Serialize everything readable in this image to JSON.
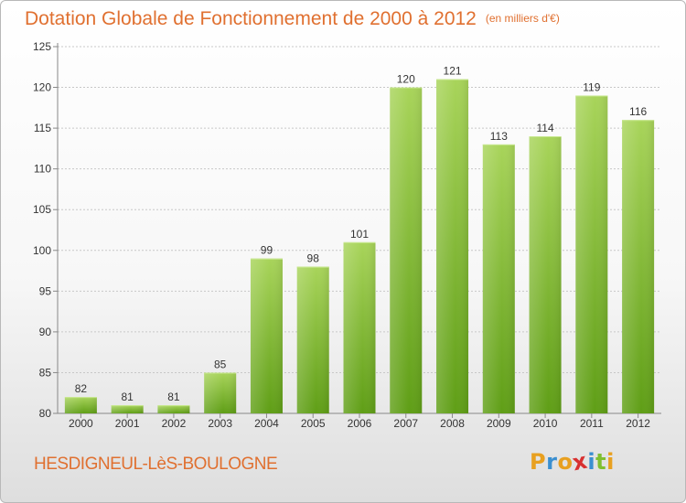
{
  "header": {
    "title": "Dotation Globale de Fonctionnement de 2000 à 2012",
    "subtitle": "(en milliers d'€)"
  },
  "footer": {
    "commune": "HESDIGNEUL-LèS-BOULOGNE",
    "logo_text": "Proxiti",
    "logo_colors": [
      "#e8a020",
      "#3a8fd0",
      "#e8a020",
      "#d83030",
      "#3a8fd0",
      "#7fbf30",
      "#e8a020"
    ]
  },
  "colors": {
    "bar_top": "#a8d45a",
    "bar_bottom": "#5f9e16",
    "title": "#e07030",
    "grid": "#c8c8c8"
  },
  "chart_data": {
    "type": "bar",
    "title": "Dotation Globale de Fonctionnement de 2000 à 2012",
    "subtitle": "(en milliers d'€)",
    "categories": [
      "2000",
      "2001",
      "2002",
      "2003",
      "2004",
      "2005",
      "2006",
      "2007",
      "2008",
      "2009",
      "2010",
      "2011",
      "2012"
    ],
    "values": [
      82,
      81,
      81,
      85,
      99,
      98,
      101,
      120,
      121,
      113,
      114,
      119,
      116
    ],
    "ylim": [
      80,
      125
    ],
    "yticks": [
      80,
      85,
      90,
      95,
      100,
      105,
      110,
      115,
      120,
      125
    ],
    "grid": true,
    "data_labels": true
  }
}
